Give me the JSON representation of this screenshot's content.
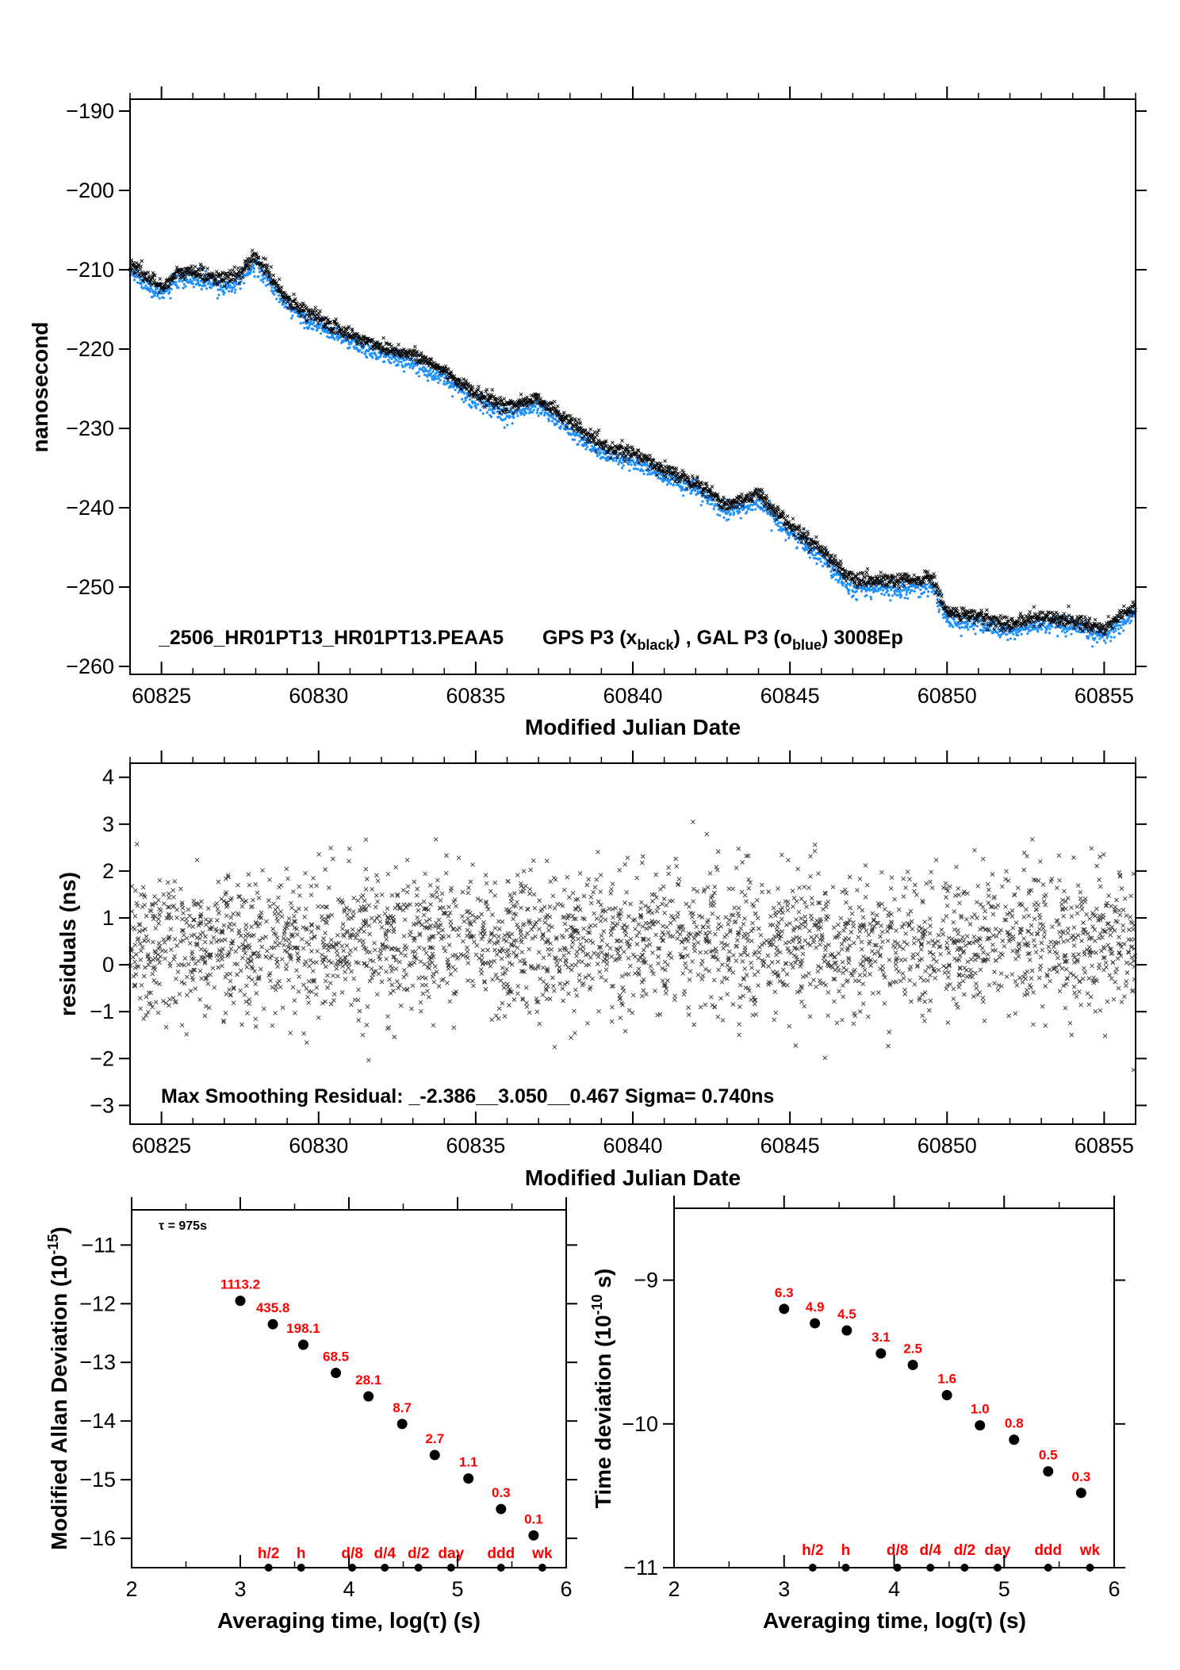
{
  "chart_data": [
    {
      "type": "scatter",
      "id": "phase",
      "series": [
        {
          "name": "GPS P3",
          "marker": "x",
          "color": "#000000"
        },
        {
          "name": "GAL P3",
          "marker": "o",
          "color": "#1e90ff"
        }
      ],
      "trend_x": [
        60824,
        60825,
        60825.5,
        60826,
        60827,
        60827.5,
        60828,
        60829,
        60830,
        60831,
        60832,
        60833,
        60834,
        60835,
        60836,
        60837,
        60838,
        60839,
        60840,
        60841,
        60842,
        60843,
        60844,
        60845,
        60846,
        60847,
        60848,
        60849,
        60849.5,
        60850,
        60851,
        60852,
        60853,
        60854,
        60855,
        60856
      ],
      "trend_y": [
        -209.5,
        -212.5,
        -210.8,
        -210.5,
        -211.5,
        -210.8,
        -208.5,
        -214,
        -216.5,
        -218.5,
        -220,
        -221,
        -223,
        -226,
        -227.5,
        -226.5,
        -229.5,
        -232.5,
        -233.5,
        -235.5,
        -237,
        -240,
        -238.5,
        -242.5,
        -245.5,
        -249.5,
        -249.5,
        -249.5,
        -249,
        -253.5,
        -254,
        -255,
        -254,
        -254.5,
        -255.5,
        -252.5
      ],
      "xlabel": "Modified Julian Date",
      "ylabel": "nanosecond",
      "xlim": [
        60824,
        60856
      ],
      "ylim": [
        -261,
        -188.5
      ],
      "xticks": [
        60825,
        60830,
        60835,
        60840,
        60845,
        60850,
        60855
      ],
      "yticks": [
        -260,
        -250,
        -240,
        -230,
        -220,
        -210,
        -200,
        -190
      ],
      "tick_labels_y": [
        "−260",
        "−250",
        "−240",
        "−230",
        "−220",
        "−210",
        "−200",
        "−190"
      ],
      "annotation": {
        "file": "_2506_HR01PT13_HR01PT13.PEAA5",
        "gps_prefix": "GPS P3 (x",
        "gps_sub": "black",
        "middle": ") ,  GAL P3 (o",
        "gal_sub": "blue",
        "suffix": ")  3008Ep"
      }
    },
    {
      "type": "scatter",
      "id": "residuals",
      "series": [
        {
          "name": "residuals",
          "marker": "x",
          "color": "#000000"
        }
      ],
      "xlabel": "Modified Julian Date",
      "ylabel": "residuals (ns)",
      "xlim": [
        60824,
        60856
      ],
      "ylim": [
        -3.4,
        4.3
      ],
      "xticks": [
        60825,
        60830,
        60835,
        60840,
        60845,
        60850,
        60855
      ],
      "yticks": [
        -3,
        -2,
        -1,
        0,
        1,
        2,
        3,
        4
      ],
      "tick_labels_y": [
        "−3",
        "−2",
        "−1",
        "0",
        "1",
        "2",
        "3",
        "4"
      ],
      "mean": 0.467,
      "sigma": 0.74,
      "min": -2.386,
      "max": 3.05,
      "annotation": "Max Smoothing Residual: _-2.386__3.050__0.467  Sigma= 0.740ns"
    },
    {
      "type": "scatter",
      "id": "mdev",
      "x": [
        3.0,
        3.3,
        3.58,
        3.88,
        4.18,
        4.49,
        4.79,
        5.1,
        5.4,
        5.7
      ],
      "y": [
        -11.95,
        -12.35,
        -12.7,
        -13.18,
        -13.58,
        -14.05,
        -14.58,
        -14.98,
        -15.5,
        -15.95
      ],
      "point_labels": [
        "1113.2",
        "435.8",
        "198.1",
        "68.5",
        "28.1",
        "8.7",
        "2.7",
        "1.1",
        "0.3",
        "0.1"
      ],
      "xlabel": "Averaging time, log(τ) (s)",
      "ylabel_main": "Modified Allan Deviation (10",
      "ylabel_sup": "-15",
      "ylabel_end": ")",
      "xlim": [
        2,
        6
      ],
      "ylim": [
        -16.5,
        -10.4
      ],
      "xticks": [
        2,
        3,
        4,
        5,
        6
      ],
      "yticks": [
        -16,
        -15,
        -14,
        -13,
        -12,
        -11
      ],
      "tick_labels_y": [
        "−16",
        "−15",
        "−14",
        "−13",
        "−12",
        "−11"
      ],
      "tau_label": "τ = 975s",
      "markers_x": [
        3.26,
        3.56,
        4.03,
        4.33,
        4.64,
        4.94,
        5.4,
        5.78
      ],
      "markers": [
        "h/2",
        "h",
        "d/8",
        "d/4",
        "d/2",
        "day",
        "ddd",
        "wk"
      ]
    },
    {
      "type": "scatter",
      "id": "tdev",
      "x": [
        3.0,
        3.28,
        3.57,
        3.88,
        4.17,
        4.48,
        4.78,
        5.09,
        5.4,
        5.7
      ],
      "y": [
        -9.2,
        -9.3,
        -9.35,
        -9.51,
        -9.59,
        -9.8,
        -10.01,
        -10.11,
        -10.33,
        -10.48
      ],
      "point_labels": [
        "6.3",
        "4.9",
        "4.5",
        "3.1",
        "2.5",
        "1.6",
        "1.0",
        "0.8",
        "0.5",
        "0.3"
      ],
      "xlabel": "Averaging time, log(τ) (s)",
      "ylabel_main": "Time deviation (10",
      "ylabel_sup": "-10",
      "ylabel_end": " s)",
      "xlim": [
        2,
        6
      ],
      "ylim": [
        -11,
        -8.5
      ],
      "xticks": [
        2,
        3,
        4,
        5,
        6
      ],
      "yticks": [
        -11,
        -10,
        -9
      ],
      "tick_labels_y": [
        "−11",
        "−10",
        "−9"
      ],
      "markers_x": [
        3.26,
        3.56,
        4.03,
        4.33,
        4.64,
        4.94,
        5.4,
        5.78
      ],
      "markers": [
        "h/2",
        "h",
        "d/8",
        "d/4",
        "d/2",
        "day",
        "ddd",
        "wk"
      ]
    }
  ]
}
